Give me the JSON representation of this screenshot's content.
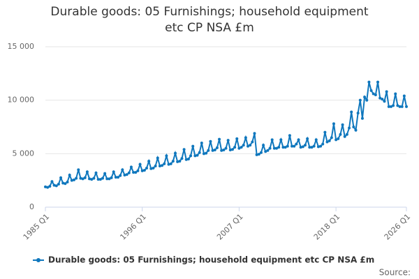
{
  "chart_data": {
    "type": "line",
    "title": "Durable goods: 05 Furnishings; household equipment etc CP NSA £m",
    "source": "Source:",
    "categories": [
      "1985 Q1",
      null,
      null,
      null,
      null,
      null,
      null,
      null,
      null,
      null,
      null,
      null,
      null,
      null,
      null,
      null,
      null,
      null,
      null,
      null,
      null,
      null,
      null,
      null,
      null,
      null,
      null,
      null,
      null,
      null,
      null,
      null,
      null,
      null,
      null,
      null,
      null,
      null,
      null,
      null,
      null,
      null,
      null,
      null,
      "1996 Q1",
      null,
      null,
      null,
      null,
      null,
      null,
      null,
      null,
      null,
      null,
      null,
      null,
      null,
      null,
      null,
      null,
      null,
      null,
      null,
      null,
      null,
      null,
      null,
      null,
      null,
      null,
      null,
      null,
      null,
      null,
      null,
      null,
      null,
      null,
      null,
      null,
      null,
      null,
      null,
      null,
      null,
      null,
      null,
      "2007 Q1",
      null,
      null,
      null,
      null,
      null,
      null,
      null,
      null,
      null,
      null,
      null,
      null,
      null,
      null,
      null,
      null,
      null,
      null,
      null,
      null,
      null,
      null,
      null,
      null,
      null,
      null,
      null,
      null,
      null,
      null,
      null,
      null,
      null,
      null,
      null,
      null,
      null,
      null,
      null,
      null,
      null,
      null,
      null,
      "2018 Q1",
      null,
      null,
      null,
      null,
      null,
      null,
      null,
      null,
      null,
      null,
      null,
      null,
      null,
      null,
      null,
      null,
      null,
      null,
      null,
      null,
      null,
      null,
      null,
      null,
      null,
      null,
      null,
      null,
      null,
      null,
      null,
      "2026 Q1"
    ],
    "series": [
      {
        "name": "Durable goods: 05 Furnishings; household equipment etc CP NSA £m",
        "color": "#0f77bd",
        "values": [
          1900,
          1850,
          1950,
          2400,
          2050,
          2000,
          2150,
          2750,
          2250,
          2200,
          2350,
          3000,
          2500,
          2550,
          2700,
          3500,
          2700,
          2650,
          2750,
          3300,
          2650,
          2600,
          2700,
          3200,
          2600,
          2600,
          2700,
          3150,
          2650,
          2650,
          2750,
          3300,
          2800,
          2800,
          2950,
          3500,
          3000,
          3050,
          3200,
          3750,
          3250,
          3250,
          3400,
          4000,
          3400,
          3450,
          3650,
          4300,
          3600,
          3650,
          3850,
          4600,
          3850,
          3900,
          4050,
          4800,
          4000,
          4050,
          4300,
          5050,
          4250,
          4300,
          4550,
          5400,
          4450,
          4500,
          4800,
          5700,
          4800,
          4850,
          5100,
          6000,
          5000,
          5050,
          5300,
          6150,
          5300,
          5350,
          5550,
          6350,
          5300,
          5350,
          5500,
          6250,
          5350,
          5400,
          5600,
          6400,
          5500,
          5600,
          5800,
          6500,
          5700,
          5800,
          6100,
          6900,
          4900,
          4950,
          5100,
          5800,
          5200,
          5300,
          5500,
          6300,
          5500,
          5500,
          5600,
          6300,
          5600,
          5600,
          5700,
          6700,
          5700,
          5700,
          5900,
          6300,
          5600,
          5650,
          5800,
          6400,
          5600,
          5600,
          5700,
          6300,
          5650,
          5700,
          5900,
          7000,
          6100,
          6200,
          6500,
          7800,
          6300,
          6400,
          6800,
          7700,
          6600,
          6800,
          7400,
          8900,
          7500,
          7200,
          8800,
          10000,
          8300,
          10300,
          10000,
          11700,
          10900,
          10600,
          10500,
          11700,
          10200,
          10100,
          9900,
          10800,
          9400,
          9400,
          9500,
          10600,
          9500,
          9400,
          9400,
          10400,
          9400
        ]
      }
    ],
    "ylim": [
      0,
      15000
    ],
    "yticks": [
      0,
      {
        "value": 5000,
        "label": "5 000"
      },
      {
        "value": 10000,
        "label": "10 000"
      },
      {
        "value": 15000,
        "label": "15 000"
      }
    ],
    "grid": true
  }
}
